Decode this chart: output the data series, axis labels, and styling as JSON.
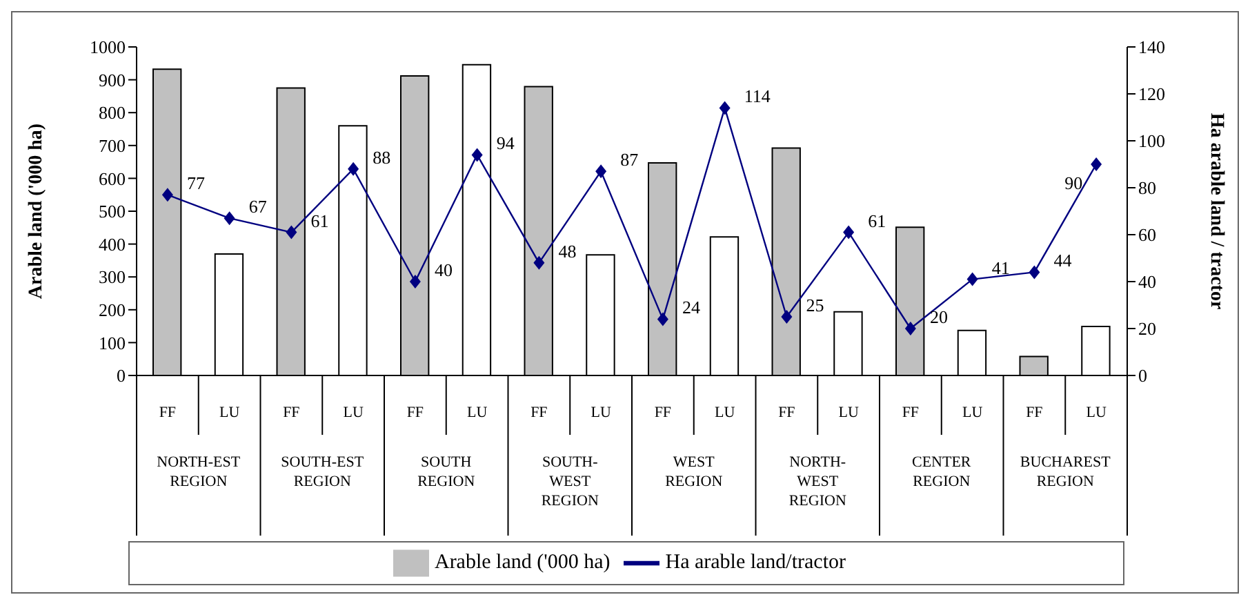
{
  "chart_data": {
    "type": "bar",
    "categories": [
      "FF",
      "LU",
      "FF",
      "LU",
      "FF",
      "LU",
      "FF",
      "LU",
      "FF",
      "LU",
      "FF",
      "LU",
      "FF",
      "LU",
      "FF",
      "LU"
    ],
    "annotations": [
      "NORTH-EST\nREGION",
      "SOUTH-EST\nREGION",
      "SOUTH\nREGION",
      "SOUTH-\nWEST\nREGION",
      "WEST\nREGION",
      "NORTH-\nWEST\nREGION",
      "CENTER\nREGION",
      "BUCHAREST\nREGION"
    ],
    "ylabel": "Arable land ('000 ha)",
    "y2label": "Ha arable land / tractor",
    "ylim": [
      0,
      1000
    ],
    "yticks": [
      0,
      100,
      200,
      300,
      400,
      500,
      600,
      700,
      800,
      900,
      1000
    ],
    "y2lim": [
      0,
      140
    ],
    "y2ticks": [
      0,
      20,
      40,
      60,
      80,
      100,
      120,
      140
    ],
    "legend": "bottom",
    "marker": "diamond",
    "line_style": "solid",
    "series": [
      {
        "name": "Arable land ('000 ha)",
        "colors": [
          "#c0c0c0",
          "#ffffff",
          "#c0c0c0",
          "#ffffff",
          "#c0c0c0",
          "#ffffff",
          "#c0c0c0",
          "#ffffff",
          "#c0c0c0",
          "#ffffff",
          "#c0c0c0",
          "#ffffff",
          "#c0c0c0",
          "#ffffff",
          "#c0c0c0",
          "#ffffff"
        ],
        "values": [
          932,
          370,
          875,
          760,
          912,
          946,
          879,
          367,
          647,
          422,
          692,
          194,
          451,
          137,
          58,
          149
        ]
      },
      {
        "name": "Ha arable land/tractor",
        "type": "line",
        "axis": "y2",
        "color": "#000080",
        "values": [
          77,
          67,
          61,
          88,
          40,
          94,
          48,
          87,
          24,
          114,
          25,
          61,
          20,
          41,
          44,
          90
        ],
        "value_labels": [
          "77",
          "67",
          "61",
          "88",
          "40",
          "94",
          "48",
          "87",
          "24",
          "114",
          "25",
          "61",
          "20",
          "41",
          "44",
          "90"
        ]
      }
    ]
  }
}
